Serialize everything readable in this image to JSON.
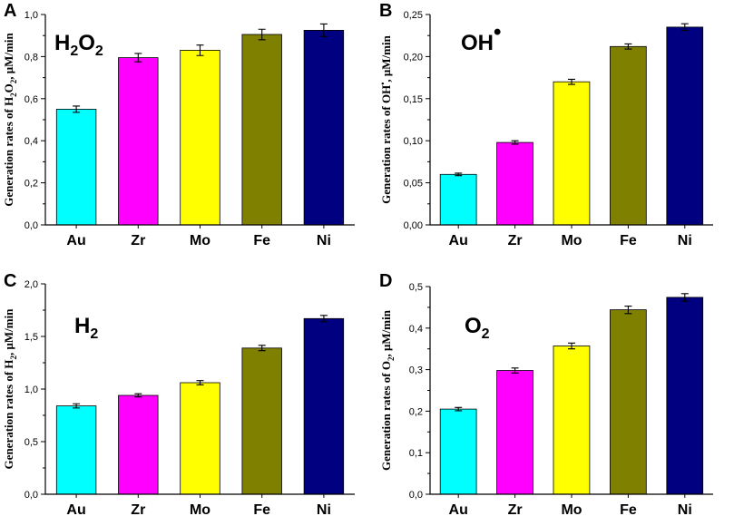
{
  "chart_data": [
    {
      "type": "bar",
      "panel": "A",
      "species": {
        "base": "H",
        "sub": "2",
        "mid": "O",
        "sub2": "2",
        "sup": ""
      },
      "ylabel": {
        "pre": "Generation rates of H",
        "sub": "2",
        "mid": "O",
        "sub2": "2",
        "sup": "",
        "post": ", μM/min"
      },
      "xlabel": "",
      "categories": [
        "Au",
        "Zr",
        "Mo",
        "Fe",
        "Ni"
      ],
      "values": [
        0.55,
        0.795,
        0.83,
        0.905,
        0.925
      ],
      "errors": [
        0.015,
        0.02,
        0.025,
        0.025,
        0.03
      ],
      "colors": [
        "#00ffff",
        "#ff00ff",
        "#ffff00",
        "#808000",
        "#000080"
      ],
      "ylim": [
        0,
        1.0
      ],
      "yticks": [
        0,
        0.2,
        0.4,
        0.6,
        0.8,
        1.0
      ],
      "ytick_labels": [
        "0,0",
        "0,2",
        "0,4",
        "0,6",
        "0,8",
        "1,0"
      ]
    },
    {
      "type": "bar",
      "panel": "B",
      "species": {
        "base": "OH",
        "sub": "",
        "mid": "",
        "sub2": "",
        "sup": "•"
      },
      "ylabel": {
        "pre": "Generation rates of OH",
        "sub": "",
        "mid": "",
        "sub2": "",
        "sup": "•",
        "post": ", μM/min"
      },
      "xlabel": "",
      "categories": [
        "Au",
        "Zr",
        "Mo",
        "Fe",
        "Ni"
      ],
      "values": [
        0.06,
        0.098,
        0.17,
        0.212,
        0.235
      ],
      "errors": [
        0.0015,
        0.002,
        0.003,
        0.003,
        0.004
      ],
      "colors": [
        "#00ffff",
        "#ff00ff",
        "#ffff00",
        "#808000",
        "#000080"
      ],
      "ylim": [
        0,
        0.25
      ],
      "yticks": [
        0,
        0.05,
        0.1,
        0.15,
        0.2,
        0.25
      ],
      "ytick_labels": [
        "0,00",
        "0,05",
        "0,10",
        "0,15",
        "0,20",
        "0,25"
      ]
    },
    {
      "type": "bar",
      "panel": "C",
      "species": {
        "base": "H",
        "sub": "2",
        "mid": "",
        "sub2": "",
        "sup": ""
      },
      "ylabel": {
        "pre": "Generation rates of H",
        "sub": "2",
        "mid": "",
        "sub2": "",
        "sup": "",
        "post": ", μM/min"
      },
      "xlabel": "",
      "categories": [
        "Au",
        "Zr",
        "Mo",
        "Fe",
        "Ni"
      ],
      "values": [
        0.84,
        0.94,
        1.06,
        1.39,
        1.67
      ],
      "errors": [
        0.02,
        0.015,
        0.02,
        0.025,
        0.03
      ],
      "colors": [
        "#00ffff",
        "#ff00ff",
        "#ffff00",
        "#808000",
        "#000080"
      ],
      "ylim": [
        0,
        2.0
      ],
      "yticks": [
        0,
        0.5,
        1.0,
        1.5,
        2.0
      ],
      "ytick_labels": [
        "0,0",
        "0,5",
        "1,0",
        "1,5",
        "2,0"
      ]
    },
    {
      "type": "bar",
      "panel": "D",
      "species": {
        "base": "O",
        "sub": "2",
        "mid": "",
        "sub2": "",
        "sup": ""
      },
      "ylabel": {
        "pre": "Generation rates of O",
        "sub": "2",
        "mid": "",
        "sub2": "",
        "sup": "",
        "post": ", μM/min"
      },
      "xlabel": "",
      "categories": [
        "Au",
        "Zr",
        "Mo",
        "Fe",
        "Ni"
      ],
      "values": [
        0.205,
        0.298,
        0.357,
        0.444,
        0.474
      ],
      "errors": [
        0.004,
        0.006,
        0.007,
        0.009,
        0.009
      ],
      "colors": [
        "#00ffff",
        "#ff00ff",
        "#ffff00",
        "#808000",
        "#000080"
      ],
      "ylim": [
        0,
        0.5
      ],
      "yticks": [
        0,
        0.1,
        0.2,
        0.3,
        0.4,
        0.5
      ],
      "ytick_labels": [
        "0,0",
        "0,1",
        "0,2",
        "0,3",
        "0,4",
        "0,5"
      ]
    }
  ]
}
